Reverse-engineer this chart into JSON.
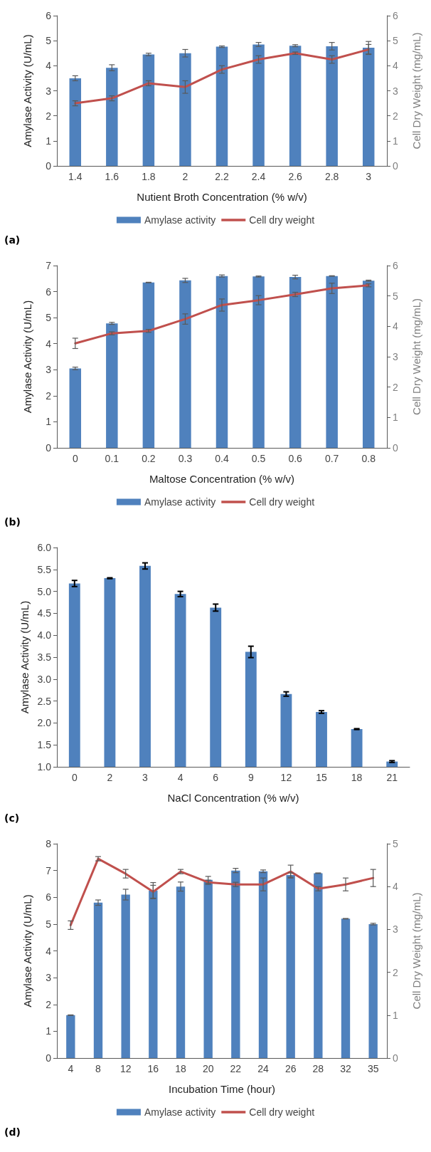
{
  "chart_data": [
    {
      "type": "bar",
      "xlabel": "Nutient Broth Concentration (% w/v)",
      "ylabel": "Amylase Activity (U/mL)",
      "y2label": "Cell Dry Weight (mg/mL)",
      "categories": [
        "1.4",
        "1.6",
        "1.8",
        "2",
        "2.2",
        "2.4",
        "2.6",
        "2.8",
        "3"
      ],
      "series": [
        {
          "name": "Amylase activity",
          "color": "#4f81bd",
          "values": [
            3.5,
            3.92,
            4.45,
            4.5,
            4.76,
            4.85,
            4.8,
            4.78,
            4.72
          ],
          "errors": [
            0.1,
            0.12,
            0.05,
            0.15,
            0.03,
            0.08,
            0.04,
            0.15,
            0.25
          ]
        },
        {
          "name": "Cell dry weight",
          "type": "line",
          "axis": "y2",
          "color": "#c0504d",
          "values": [
            2.5,
            2.7,
            3.3,
            3.15,
            3.85,
            4.25,
            4.5,
            4.25,
            4.65
          ],
          "errors": [
            0.1,
            0.1,
            0.1,
            0.25,
            0.15,
            0.15,
            0.05,
            0.15,
            0.2
          ]
        }
      ],
      "ylim": [
        0,
        6
      ],
      "yticks": [
        0,
        1,
        2,
        3,
        4,
        5,
        6
      ],
      "y2lim": [
        0,
        6
      ],
      "y2ticks": [
        0,
        1,
        2,
        3,
        4,
        5,
        6
      ],
      "grid": false,
      "legend": "bottom",
      "marker": "none",
      "line_style": "solid",
      "annotations": [
        "(a)"
      ]
    },
    {
      "type": "bar",
      "xlabel": "Maltose Concentration (% w/v)",
      "ylabel": "Amylase Activity (U/mL)",
      "y2label": "Cell Dry Weight (mg/mL)",
      "categories": [
        "0",
        "0.1",
        "0.2",
        "0.3",
        "0.4",
        "0.5",
        "0.6",
        "0.7",
        "0.8"
      ],
      "series": [
        {
          "name": "Amylase activity",
          "color": "#4f81bd",
          "values": [
            3.05,
            4.78,
            6.35,
            6.43,
            6.6,
            6.58,
            6.56,
            6.6,
            6.42
          ],
          "errors": [
            0.05,
            0.04,
            0.01,
            0.08,
            0.04,
            0.02,
            0.07,
            0.01,
            0.02
          ]
        },
        {
          "name": "Cell dry weight",
          "type": "line",
          "axis": "y2",
          "color": "#c0504d",
          "values": [
            3.44,
            3.77,
            3.85,
            4.24,
            4.7,
            4.86,
            5.05,
            5.25,
            5.35
          ],
          "errors": [
            0.17,
            0.05,
            0.05,
            0.17,
            0.2,
            0.15,
            0.07,
            0.17,
            0.05
          ]
        }
      ],
      "ylim": [
        0,
        7
      ],
      "yticks": [
        0,
        1,
        2,
        3,
        4,
        5,
        6,
        7
      ],
      "y2lim": [
        0,
        6
      ],
      "y2ticks": [
        0,
        1,
        2,
        3,
        4,
        5,
        6
      ],
      "grid": false,
      "legend": "bottom",
      "marker": "none",
      "line_style": "solid",
      "annotations": [
        "(b)"
      ]
    },
    {
      "type": "bar",
      "xlabel": "NaCl Concentration (% w/v)",
      "ylabel": "Amylase Activity (U/mL)",
      "categories": [
        "0",
        "2",
        "3",
        "4",
        "6",
        "9",
        "12",
        "15",
        "18",
        "21"
      ],
      "series": [
        {
          "color": "#4f81bd",
          "values": [
            5.18,
            5.3,
            5.58,
            4.94,
            4.63,
            3.62,
            2.66,
            2.25,
            1.86,
            1.12
          ],
          "errors": [
            0.07,
            0.01,
            0.07,
            0.06,
            0.08,
            0.13,
            0.05,
            0.03,
            0.01,
            0.02
          ]
        }
      ],
      "ylim": [
        1,
        6
      ],
      "yticks": [
        {
          "value": 1,
          "label": "1.0"
        },
        {
          "value": 1.5,
          "label": "1.5"
        },
        {
          "value": 2,
          "label": "2.0"
        },
        {
          "value": 2.5,
          "label": "2.5"
        },
        {
          "value": 3,
          "label": "3.0"
        },
        {
          "value": 3.5,
          "label": "3.5"
        },
        {
          "value": 4,
          "label": "4.0"
        },
        {
          "value": 4.5,
          "label": "4.5"
        },
        {
          "value": 5,
          "label": "5.0"
        },
        {
          "value": 5.5,
          "label": "5.5"
        },
        {
          "value": 6,
          "label": "6.0"
        }
      ],
      "grid": false,
      "legend": false,
      "annotations": [
        "(c)"
      ]
    },
    {
      "type": "bar",
      "xlabel": "Incubation Time (hour)",
      "ylabel": "Amylase Activity (U/mL)",
      "y2label": "Cell Dry Weight (mg/mL)",
      "categories": [
        "4",
        "8",
        "12",
        "16",
        "18",
        "20",
        "22",
        "24",
        "26",
        "28",
        "32",
        "35"
      ],
      "series": [
        {
          "name": "Amylase activity",
          "color": "#4f81bd",
          "values": [
            1.6,
            5.8,
            6.1,
            6.25,
            6.4,
            6.65,
            7.0,
            6.97,
            6.83,
            6.9,
            5.2,
            5.0
          ],
          "errors": [
            0.01,
            0.1,
            0.2,
            0.3,
            0.17,
            0.13,
            0.08,
            0.05,
            0.08,
            0.01,
            0.01,
            0.03
          ]
        },
        {
          "name": "Cell dry weight",
          "type": "line",
          "axis": "y2",
          "color": "#c0504d",
          "values": [
            3.1,
            4.65,
            4.3,
            3.88,
            4.35,
            4.1,
            4.05,
            4.05,
            4.35,
            3.95,
            4.05,
            4.2
          ],
          "errors": [
            0.1,
            0.05,
            0.1,
            0.15,
            0.05,
            0.05,
            0.05,
            0.15,
            0.15,
            0.05,
            0.15,
            0.2
          ]
        }
      ],
      "ylim": [
        0,
        8
      ],
      "yticks": [
        0,
        1,
        2,
        3,
        4,
        5,
        6,
        7,
        8
      ],
      "y2lim": [
        0,
        5
      ],
      "y2ticks": [
        0,
        1,
        2,
        3,
        4,
        5
      ],
      "grid": false,
      "legend": "bottom",
      "marker": "none",
      "line_style": "solid",
      "annotations": [
        "(d)"
      ]
    }
  ]
}
